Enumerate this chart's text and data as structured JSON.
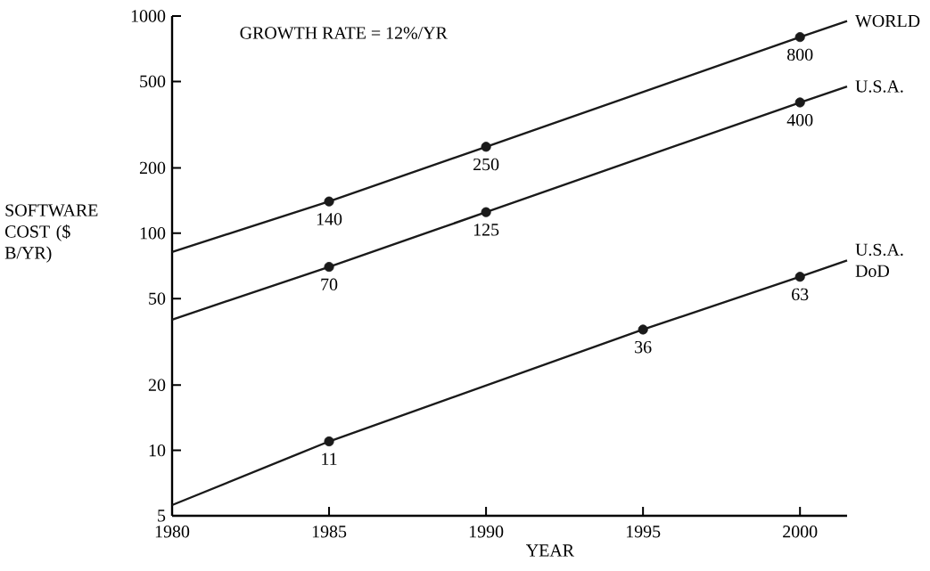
{
  "chart_data": {
    "type": "line",
    "xlabel": "YEAR",
    "ylabel": "SOFTWARE COST ($ B/YR)",
    "annotations": [
      "GROWTH RATE = 12%/YR"
    ],
    "log": "y",
    "xlim": [
      1980,
      2001.5
    ],
    "ylim": [
      5,
      1000
    ],
    "xticks": [
      1980,
      1985,
      1990,
      1995,
      2000
    ],
    "yticks": [
      5,
      10,
      20,
      50,
      100,
      200,
      500,
      1000
    ],
    "marker": "circle",
    "line_style": "solid",
    "series": [
      {
        "name": "WORLD",
        "color": "#1a1a1a",
        "x": [
          1980,
          1985,
          1990,
          2000,
          2001.5
        ],
        "values": [
          82,
          140,
          250,
          800,
          948
        ],
        "value_labels": [
          null,
          "140",
          "250",
          "800",
          null
        ]
      },
      {
        "name": "U.S.A.",
        "color": "#1a1a1a",
        "x": [
          1980,
          1985,
          1990,
          2000,
          2001.5
        ],
        "values": [
          40,
          70,
          125,
          400,
          474
        ],
        "value_labels": [
          null,
          "70",
          "125",
          "400",
          null
        ]
      },
      {
        "name": "U.S.A. DoD",
        "color": "#1a1a1a",
        "x": [
          1980,
          1985,
          1995,
          2000,
          2001.5
        ],
        "values": [
          5.6,
          11,
          36,
          63,
          75
        ],
        "value_labels": [
          null,
          "11",
          "36",
          "63",
          null
        ]
      }
    ]
  }
}
